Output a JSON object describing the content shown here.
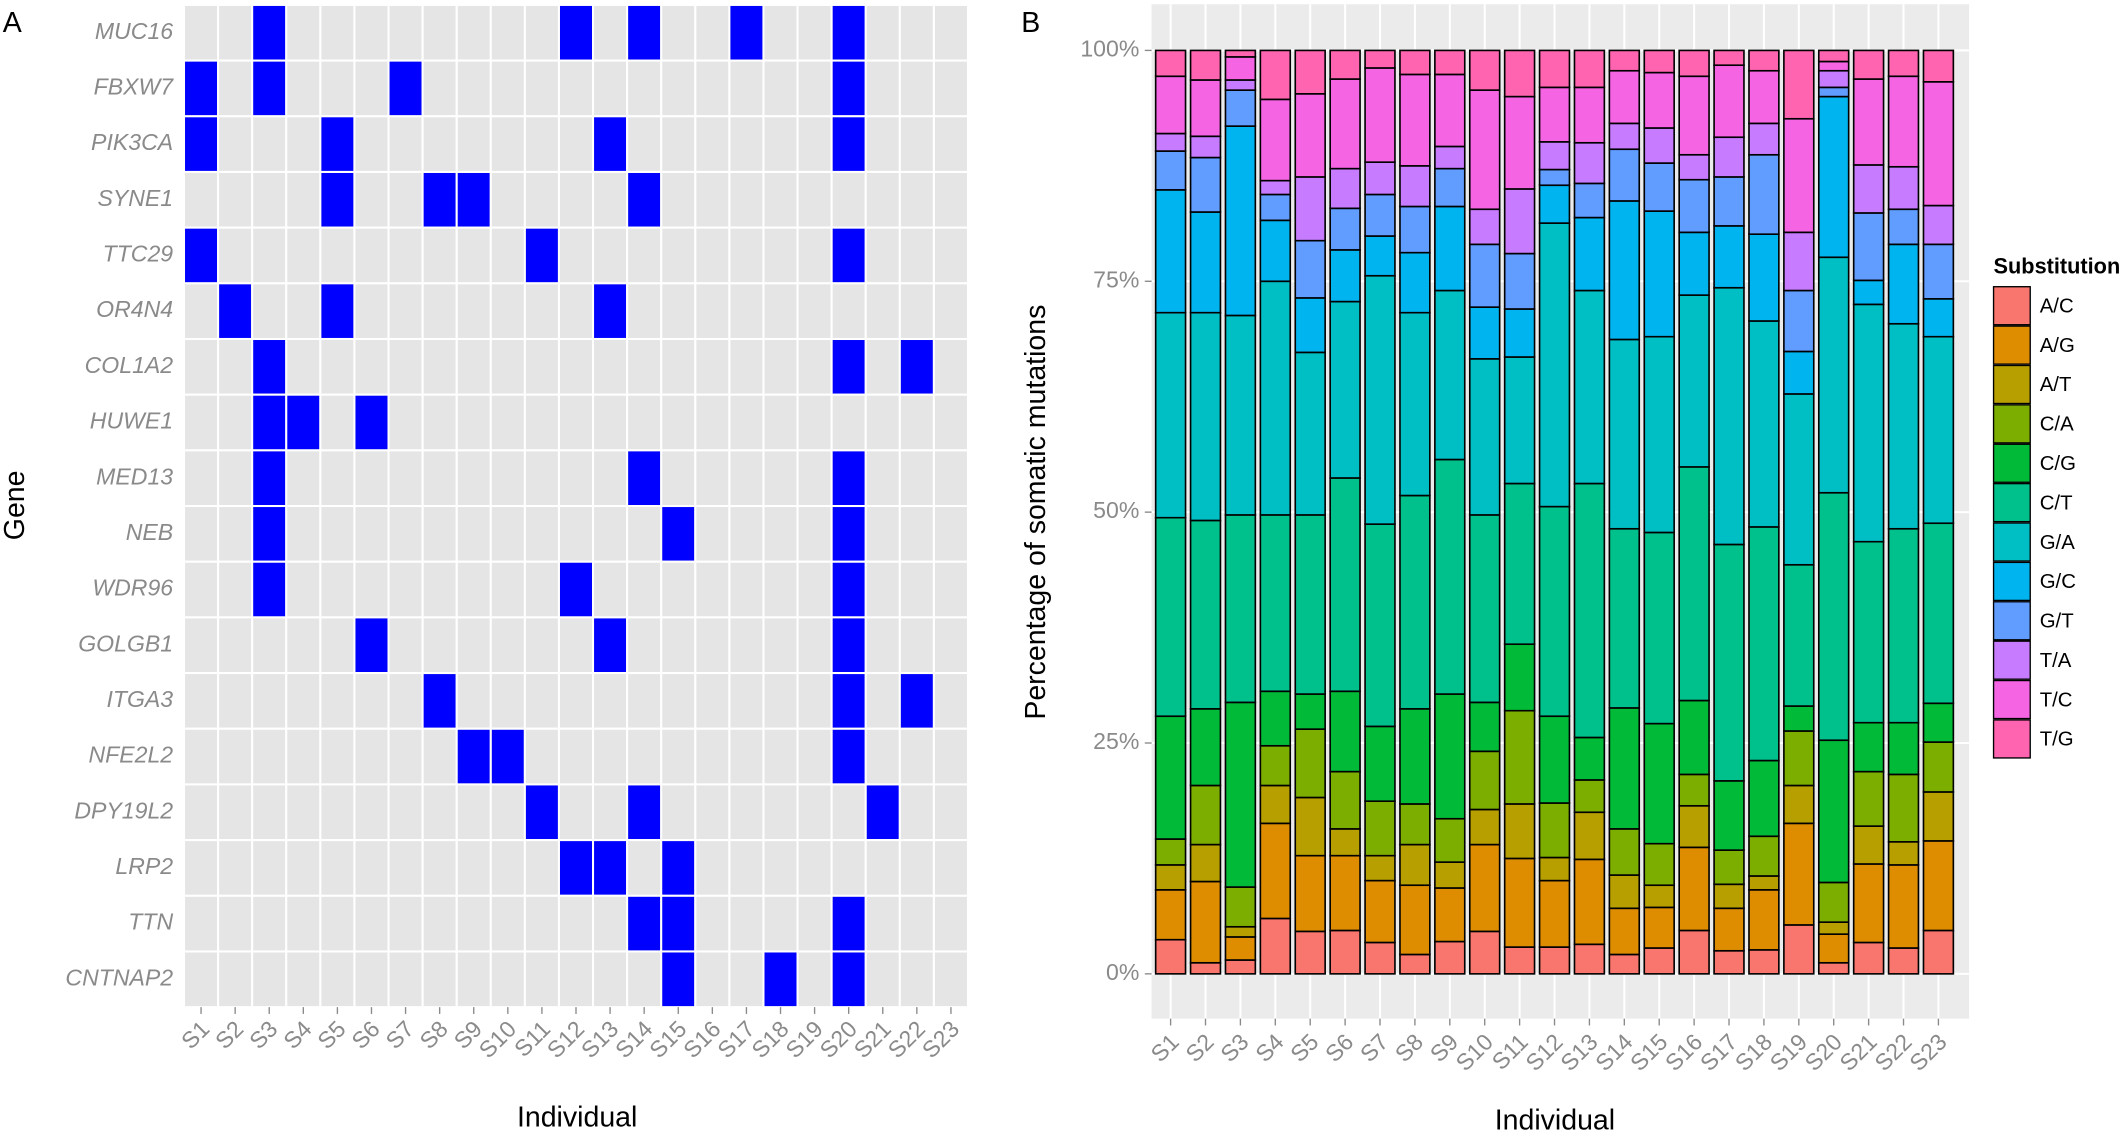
{
  "chart_data": [
    {
      "type": "heatmap",
      "panel_label": "A",
      "x_label": "Individual",
      "y_label": "Gene",
      "categories": [
        "S1",
        "S2",
        "S3",
        "S4",
        "S5",
        "S6",
        "S7",
        "S8",
        "S9",
        "S10",
        "S11",
        "S12",
        "S13",
        "S14",
        "S15",
        "S16",
        "S17",
        "S18",
        "S19",
        "S20",
        "S21",
        "S22",
        "S23"
      ],
      "rows": [
        "MUC16",
        "FBXW7",
        "PIK3CA",
        "SYNE1",
        "TTC29",
        "OR4N4",
        "COL1A2",
        "HUWE1",
        "MED13",
        "NEB",
        "WDR96",
        "GOLGB1",
        "ITGA3",
        "NFE2L2",
        "DPY19L2",
        "LRP2",
        "TTN",
        "CNTNAP2"
      ],
      "values": [
        [
          0,
          0,
          1,
          0,
          0,
          0,
          0,
          0,
          0,
          0,
          0,
          1,
          0,
          1,
          0,
          0,
          1,
          0,
          0,
          1,
          0,
          0,
          0
        ],
        [
          1,
          0,
          1,
          0,
          0,
          0,
          1,
          0,
          0,
          0,
          0,
          0,
          0,
          0,
          0,
          0,
          0,
          0,
          0,
          1,
          0,
          0,
          0
        ],
        [
          1,
          0,
          0,
          0,
          1,
          0,
          0,
          0,
          0,
          0,
          0,
          0,
          1,
          0,
          0,
          0,
          0,
          0,
          0,
          1,
          0,
          0,
          0
        ],
        [
          0,
          0,
          0,
          0,
          1,
          0,
          0,
          1,
          1,
          0,
          0,
          0,
          0,
          1,
          0,
          0,
          0,
          0,
          0,
          0,
          0,
          0,
          0
        ],
        [
          1,
          0,
          0,
          0,
          0,
          0,
          0,
          0,
          0,
          0,
          1,
          0,
          0,
          0,
          0,
          0,
          0,
          0,
          0,
          1,
          0,
          0,
          0
        ],
        [
          0,
          1,
          0,
          0,
          1,
          0,
          0,
          0,
          0,
          0,
          0,
          0,
          1,
          0,
          0,
          0,
          0,
          0,
          0,
          0,
          0,
          0,
          0
        ],
        [
          0,
          0,
          1,
          0,
          0,
          0,
          0,
          0,
          0,
          0,
          0,
          0,
          0,
          0,
          0,
          0,
          0,
          0,
          0,
          1,
          0,
          1,
          0
        ],
        [
          0,
          0,
          1,
          1,
          0,
          1,
          0,
          0,
          0,
          0,
          0,
          0,
          0,
          0,
          0,
          0,
          0,
          0,
          0,
          0,
          0,
          0,
          0
        ],
        [
          0,
          0,
          1,
          0,
          0,
          0,
          0,
          0,
          0,
          0,
          0,
          0,
          0,
          1,
          0,
          0,
          0,
          0,
          0,
          1,
          0,
          0,
          0
        ],
        [
          0,
          0,
          1,
          0,
          0,
          0,
          0,
          0,
          0,
          0,
          0,
          0,
          0,
          0,
          1,
          0,
          0,
          0,
          0,
          1,
          0,
          0,
          0
        ],
        [
          0,
          0,
          1,
          0,
          0,
          0,
          0,
          0,
          0,
          0,
          0,
          1,
          0,
          0,
          0,
          0,
          0,
          0,
          0,
          1,
          0,
          0,
          0
        ],
        [
          0,
          0,
          0,
          0,
          0,
          1,
          0,
          0,
          0,
          0,
          0,
          0,
          1,
          0,
          0,
          0,
          0,
          0,
          0,
          1,
          0,
          0,
          0
        ],
        [
          0,
          0,
          0,
          0,
          0,
          0,
          0,
          1,
          0,
          0,
          0,
          0,
          0,
          0,
          0,
          0,
          0,
          0,
          0,
          1,
          0,
          1,
          0
        ],
        [
          0,
          0,
          0,
          0,
          0,
          0,
          0,
          0,
          1,
          1,
          0,
          0,
          0,
          0,
          0,
          0,
          0,
          0,
          0,
          1,
          0,
          0,
          0
        ],
        [
          0,
          0,
          0,
          0,
          0,
          0,
          0,
          0,
          0,
          0,
          1,
          0,
          0,
          1,
          0,
          0,
          0,
          0,
          0,
          0,
          1,
          0,
          0
        ],
        [
          0,
          0,
          0,
          0,
          0,
          0,
          0,
          0,
          0,
          0,
          0,
          1,
          1,
          0,
          1,
          0,
          0,
          0,
          0,
          0,
          0,
          0,
          0
        ],
        [
          0,
          0,
          0,
          0,
          0,
          0,
          0,
          0,
          0,
          0,
          0,
          0,
          0,
          1,
          1,
          0,
          0,
          0,
          0,
          1,
          0,
          0,
          0
        ],
        [
          0,
          0,
          0,
          0,
          0,
          0,
          0,
          0,
          0,
          0,
          0,
          0,
          0,
          0,
          1,
          0,
          0,
          1,
          0,
          1,
          0,
          0,
          0
        ]
      ],
      "color": "#0000ff",
      "empty_color": "#e5e5e5"
    },
    {
      "type": "stacked_bar",
      "panel_label": "B",
      "x_label": "Individual",
      "y_label": "Percentage of somatic mutations",
      "legend_title": "Substitution",
      "legend": "right",
      "categories": [
        "S1",
        "S2",
        "S3",
        "S4",
        "S5",
        "S6",
        "S7",
        "S8",
        "S9",
        "S10",
        "S11",
        "S12",
        "S13",
        "S14",
        "S15",
        "S16",
        "S17",
        "S18",
        "S19",
        "S20",
        "S21",
        "S22",
        "S23"
      ],
      "ylim": [
        0,
        100
      ],
      "yticks": [
        {
          "value": 0,
          "label": "0%"
        },
        {
          "value": 25,
          "label": "25%"
        },
        {
          "value": 50,
          "label": "50%"
        },
        {
          "value": 75,
          "label": "75%"
        },
        {
          "value": 100,
          "label": "100%"
        }
      ],
      "grid": true,
      "series": [
        {
          "name": "A/C",
          "color": "#F8766D",
          "values": [
            3.7,
            1.2,
            1.5,
            6,
            4.6,
            4.7,
            3.4,
            2.1,
            3.5,
            4.6,
            2.9,
            2.9,
            3.2,
            2.1,
            2.8,
            4.7,
            2.5,
            2.6,
            5.3,
            1.2,
            3.4,
            2.8,
            4.7
          ]
        },
        {
          "name": "A/G",
          "color": "#DE8C00",
          "values": [
            5.4,
            8.8,
            2.5,
            10.3,
            8.2,
            8.1,
            6.7,
            7.5,
            5.8,
            9.4,
            9.6,
            7.2,
            9.2,
            5,
            4.4,
            9,
            4.6,
            6.5,
            11,
            3.1,
            8.5,
            9,
            9.7
          ]
        },
        {
          "name": "A/T",
          "color": "#B79F00",
          "values": [
            2.7,
            4,
            1.1,
            4.1,
            6.3,
            2.9,
            2.7,
            4.4,
            2.8,
            3.8,
            5.9,
            2.5,
            5.1,
            3.6,
            2.4,
            4.5,
            2.6,
            1.5,
            4.1,
            1.3,
            4.1,
            2.5,
            5.3
          ]
        },
        {
          "name": "C/A",
          "color": "#7CAE00",
          "values": [
            2.8,
            6.4,
            4.3,
            4.3,
            7.4,
            6.2,
            5.9,
            4.4,
            4.7,
            6.3,
            10.1,
            5.9,
            3.5,
            5,
            4.5,
            3.4,
            3.7,
            4.3,
            5.9,
            4.3,
            5.9,
            7.3,
            5.4
          ]
        },
        {
          "name": "C/G",
          "color": "#00BA38",
          "values": [
            13.3,
            8.3,
            20,
            5.9,
            3.8,
            8.7,
            8.1,
            10.3,
            13.5,
            5.3,
            7.2,
            9.4,
            4.6,
            13.1,
            13,
            8,
            7.5,
            8.2,
            2.7,
            15.4,
            5.3,
            5.6,
            4.2
          ]
        },
        {
          "name": "C/T",
          "color": "#00C08B",
          "values": [
            21.5,
            20.4,
            20.3,
            19.1,
            19.4,
            23.1,
            21.9,
            23.1,
            25.4,
            20.3,
            17.4,
            22.7,
            27.5,
            19.4,
            20.7,
            25.3,
            25.6,
            25.3,
            15.3,
            26.8,
            19.6,
            21,
            19.5
          ]
        },
        {
          "name": "G/A",
          "color": "#00BFC4",
          "values": [
            22.2,
            22.5,
            21.6,
            25.3,
            17.6,
            19.1,
            26.9,
            19.8,
            18.3,
            16.9,
            13.7,
            30.7,
            20.9,
            20.5,
            21.2,
            18.6,
            27.8,
            22.3,
            18.5,
            25.5,
            25.7,
            22.2,
            20.2
          ]
        },
        {
          "name": "G/C",
          "color": "#00B4F0",
          "values": [
            13.3,
            10.9,
            20.5,
            6.6,
            5.9,
            5.6,
            4.3,
            6.5,
            9.1,
            5.6,
            5.2,
            4.1,
            7.9,
            15,
            13.6,
            6.8,
            6.7,
            9.4,
            4.6,
            17.4,
            2.6,
            8.6,
            4.1
          ]
        },
        {
          "name": "G/T",
          "color": "#619CFF",
          "values": [
            4.2,
            5.9,
            3.9,
            2.8,
            6.2,
            4.5,
            4.5,
            5,
            4.1,
            6.8,
            6,
            1.7,
            3.7,
            5.6,
            5.2,
            5.7,
            5.3,
            8.6,
            6.6,
            1,
            7.3,
            3.8,
            5.9
          ]
        },
        {
          "name": "T/A",
          "color": "#C77CFF",
          "values": [
            1.9,
            2.3,
            1.1,
            1.5,
            6.9,
            4.3,
            3.5,
            4.4,
            2.4,
            3.8,
            7,
            3,
            4.4,
            2.8,
            3.8,
            2.7,
            4.3,
            3.4,
            6.3,
            1.8,
            5.2,
            4.6,
            4.2
          ]
        },
        {
          "name": "T/C",
          "color": "#F564E3",
          "values": [
            6.2,
            6.1,
            2.5,
            8.8,
            9,
            9.7,
            10.2,
            9.9,
            7.8,
            12.9,
            10,
            5.9,
            6,
            5.7,
            6,
            8.5,
            7.8,
            5.7,
            12.3,
            1,
            9.3,
            9.8,
            13.4
          ]
        },
        {
          "name": "T/G",
          "color": "#FF64B0",
          "values": [
            2.8,
            3.2,
            0.7,
            5.3,
            4.7,
            3.1,
            1.9,
            2.6,
            2.6,
            4.3,
            5,
            4,
            4,
            2.2,
            2.4,
            2.8,
            1.6,
            2.2,
            7.4,
            1.2,
            3.1,
            2.8,
            3.4
          ]
        }
      ]
    }
  ]
}
